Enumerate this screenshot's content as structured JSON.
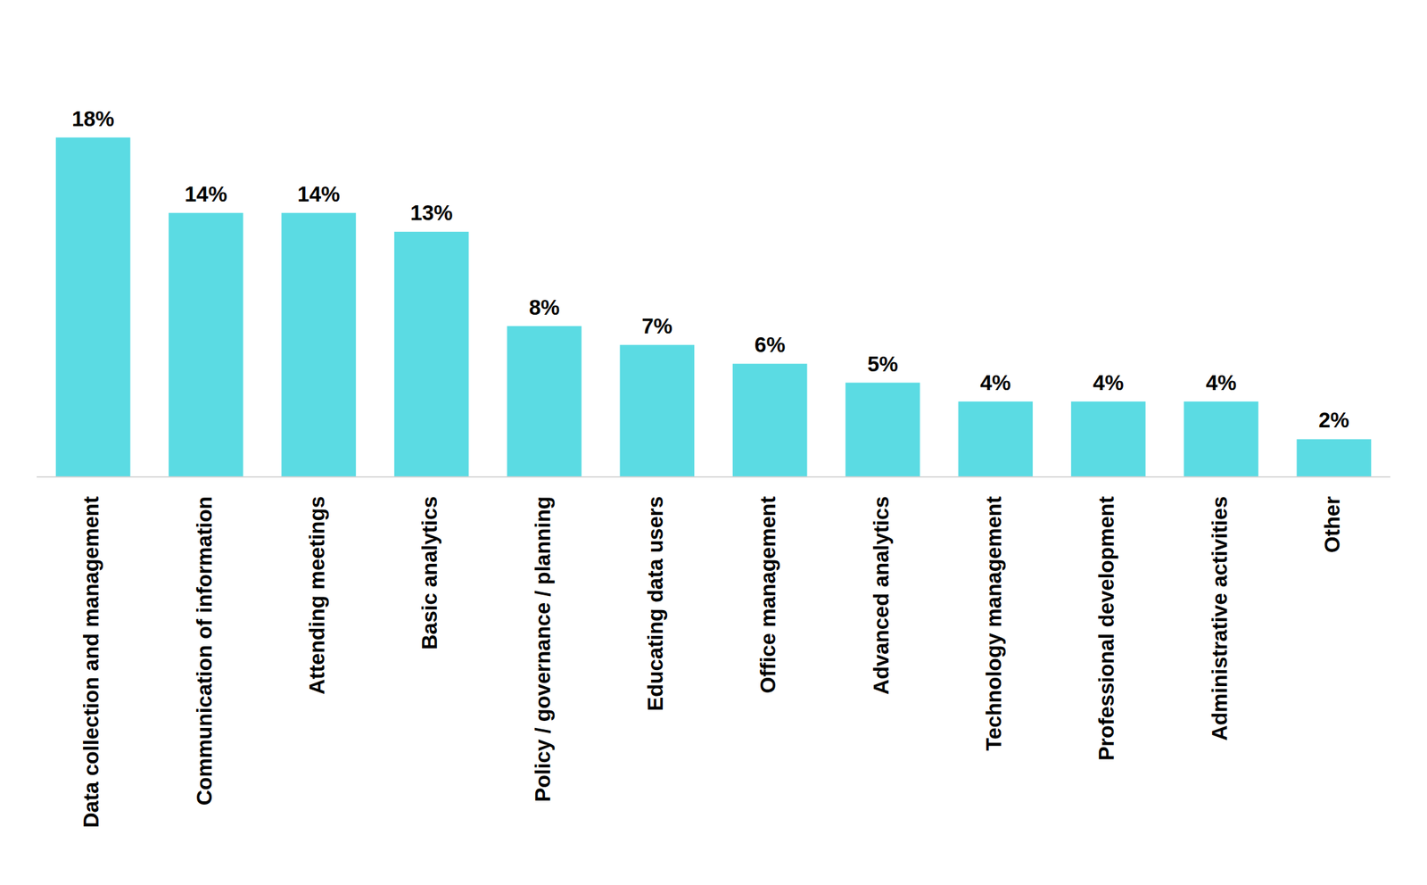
{
  "chart_data": {
    "type": "bar",
    "categories": [
      "Data collection and management",
      "Communication of information",
      "Attending meetings",
      "Basic analytics",
      "Policy / governance / planning",
      "Educating data users",
      "Office management",
      "Advanced analytics",
      "Technology management",
      "Professional development",
      "Administrative activities",
      "Other"
    ],
    "values": [
      18,
      14,
      14,
      13,
      8,
      7,
      6,
      5,
      4,
      4,
      4,
      2
    ],
    "value_labels": [
      "18%",
      "14%",
      "14%",
      "13%",
      "8%",
      "7%",
      "6%",
      "5%",
      "4%",
      "4%",
      "4%",
      "2%"
    ],
    "color": "#5bdbe3",
    "ylim": [
      0,
      20
    ],
    "data_labels": true,
    "tick_labels": "x",
    "grid": false
  }
}
